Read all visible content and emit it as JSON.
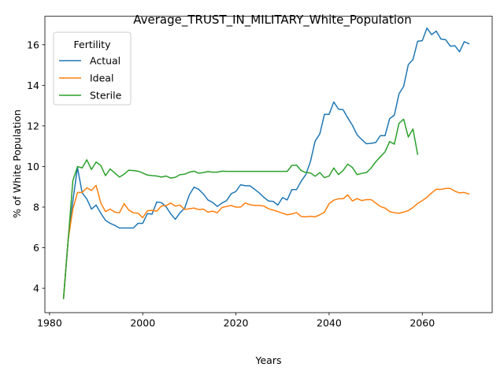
{
  "chart_data": {
    "type": "line",
    "title": "Average_TRUST_IN_MILITARY_White_Population",
    "xlabel": "Years",
    "ylabel": "% of White Population",
    "xlim": [
      1979,
      2075
    ],
    "ylim": [
      2.8,
      17.4
    ],
    "xticks": [
      1980,
      2000,
      2020,
      2040,
      2060
    ],
    "yticks": [
      4,
      6,
      8,
      10,
      12,
      14,
      16
    ],
    "grid": false,
    "legend": {
      "title": "Fertility",
      "placement": "top-left"
    },
    "series": [
      {
        "name": "Actual",
        "color": "#1f77b4",
        "points": [
          [
            1983,
            3.5
          ],
          [
            1984,
            6.4
          ],
          [
            1985,
            8.3
          ],
          [
            1986,
            9.95
          ],
          [
            1987,
            8.7
          ],
          [
            1988,
            8.4
          ],
          [
            1989,
            7.9
          ],
          [
            1990,
            8.1
          ],
          [
            1991,
            7.7
          ],
          [
            1992,
            7.35
          ],
          [
            1993,
            7.2
          ],
          [
            1994,
            7.1
          ],
          [
            1995,
            6.97
          ],
          [
            1996,
            6.97
          ],
          [
            1997,
            6.97
          ],
          [
            1998,
            6.97
          ],
          [
            1999,
            7.2
          ],
          [
            2000,
            7.2
          ],
          [
            2001,
            7.68
          ],
          [
            2002,
            7.65
          ],
          [
            2003,
            8.25
          ],
          [
            2004,
            8.22
          ],
          [
            2005,
            8.02
          ],
          [
            2006,
            7.67
          ],
          [
            2007,
            7.4
          ],
          [
            2008,
            7.72
          ],
          [
            2009,
            7.95
          ],
          [
            2010,
            8.6
          ],
          [
            2011,
            8.98
          ],
          [
            2012,
            8.88
          ],
          [
            2013,
            8.65
          ],
          [
            2014,
            8.35
          ],
          [
            2015,
            8.23
          ],
          [
            2016,
            8.03
          ],
          [
            2017,
            8.2
          ],
          [
            2018,
            8.32
          ],
          [
            2019,
            8.66
          ],
          [
            2020,
            8.77
          ],
          [
            2021,
            9.1
          ],
          [
            2022,
            9.05
          ],
          [
            2023,
            9.05
          ],
          [
            2024,
            8.88
          ],
          [
            2025,
            8.7
          ],
          [
            2026,
            8.48
          ],
          [
            2027,
            8.3
          ],
          [
            2028,
            8.28
          ],
          [
            2029,
            8.1
          ],
          [
            2030,
            8.47
          ],
          [
            2031,
            8.35
          ],
          [
            2032,
            8.86
          ],
          [
            2033,
            8.86
          ],
          [
            2034,
            9.27
          ],
          [
            2035,
            9.6
          ],
          [
            2036,
            10.25
          ],
          [
            2037,
            11.25
          ],
          [
            2038,
            11.6
          ],
          [
            2039,
            12.57
          ],
          [
            2040,
            12.57
          ],
          [
            2041,
            13.18
          ],
          [
            2042,
            12.83
          ],
          [
            2043,
            12.8
          ],
          [
            2044,
            12.4
          ],
          [
            2045,
            12.03
          ],
          [
            2046,
            11.56
          ],
          [
            2047,
            11.33
          ],
          [
            2048,
            11.12
          ],
          [
            2049,
            11.14
          ],
          [
            2050,
            11.18
          ],
          [
            2051,
            11.52
          ],
          [
            2052,
            11.52
          ],
          [
            2053,
            12.36
          ],
          [
            2054,
            12.53
          ],
          [
            2055,
            13.58
          ],
          [
            2056,
            13.95
          ],
          [
            2057,
            15.02
          ],
          [
            2058,
            15.27
          ],
          [
            2059,
            16.17
          ],
          [
            2060,
            16.2
          ],
          [
            2061,
            16.82
          ],
          [
            2062,
            16.5
          ],
          [
            2063,
            16.67
          ],
          [
            2064,
            16.28
          ],
          [
            2065,
            16.25
          ],
          [
            2066,
            15.93
          ],
          [
            2067,
            15.95
          ],
          [
            2068,
            15.65
          ],
          [
            2069,
            16.15
          ],
          [
            2070,
            16.05
          ]
        ]
      },
      {
        "name": "Ideal",
        "color": "#ff7f0e",
        "points": [
          [
            1983,
            3.5
          ],
          [
            1984,
            6.4
          ],
          [
            1985,
            7.9
          ],
          [
            1986,
            8.72
          ],
          [
            1987,
            8.72
          ],
          [
            1988,
            8.95
          ],
          [
            1989,
            8.82
          ],
          [
            1990,
            9.07
          ],
          [
            1991,
            8.2
          ],
          [
            1992,
            7.78
          ],
          [
            1993,
            7.9
          ],
          [
            1994,
            7.75
          ],
          [
            1995,
            7.72
          ],
          [
            1996,
            8.17
          ],
          [
            1997,
            7.85
          ],
          [
            1998,
            7.72
          ],
          [
            1999,
            7.7
          ],
          [
            2000,
            7.48
          ],
          [
            2001,
            7.82
          ],
          [
            2002,
            7.84
          ],
          [
            2003,
            7.8
          ],
          [
            2004,
            8.05
          ],
          [
            2005,
            8.07
          ],
          [
            2006,
            8.2
          ],
          [
            2007,
            8.05
          ],
          [
            2008,
            8.1
          ],
          [
            2009,
            7.88
          ],
          [
            2010,
            7.92
          ],
          [
            2011,
            7.95
          ],
          [
            2012,
            7.88
          ],
          [
            2013,
            7.9
          ],
          [
            2014,
            7.75
          ],
          [
            2015,
            7.8
          ],
          [
            2016,
            7.72
          ],
          [
            2017,
            7.98
          ],
          [
            2018,
            8.03
          ],
          [
            2019,
            8.08
          ],
          [
            2020,
            8.0
          ],
          [
            2021,
            8.0
          ],
          [
            2022,
            8.2
          ],
          [
            2023,
            8.12
          ],
          [
            2024,
            8.08
          ],
          [
            2025,
            8.08
          ],
          [
            2026,
            8.05
          ],
          [
            2027,
            7.92
          ],
          [
            2028,
            7.85
          ],
          [
            2029,
            7.78
          ],
          [
            2030,
            7.7
          ],
          [
            2031,
            7.62
          ],
          [
            2032,
            7.66
          ],
          [
            2033,
            7.73
          ],
          [
            2034,
            7.54
          ],
          [
            2035,
            7.52
          ],
          [
            2036,
            7.55
          ],
          [
            2037,
            7.52
          ],
          [
            2038,
            7.62
          ],
          [
            2039,
            7.75
          ],
          [
            2040,
            8.17
          ],
          [
            2041,
            8.34
          ],
          [
            2042,
            8.41
          ],
          [
            2043,
            8.41
          ],
          [
            2044,
            8.6
          ],
          [
            2045,
            8.3
          ],
          [
            2046,
            8.42
          ],
          [
            2047,
            8.32
          ],
          [
            2048,
            8.37
          ],
          [
            2049,
            8.37
          ],
          [
            2050,
            8.2
          ],
          [
            2051,
            8.03
          ],
          [
            2052,
            7.95
          ],
          [
            2053,
            7.78
          ],
          [
            2054,
            7.72
          ],
          [
            2055,
            7.7
          ],
          [
            2056,
            7.75
          ],
          [
            2057,
            7.83
          ],
          [
            2058,
            7.98
          ],
          [
            2059,
            8.18
          ],
          [
            2060,
            8.32
          ],
          [
            2061,
            8.48
          ],
          [
            2062,
            8.7
          ],
          [
            2063,
            8.88
          ],
          [
            2064,
            8.87
          ],
          [
            2065,
            8.92
          ],
          [
            2066,
            8.92
          ],
          [
            2067,
            8.78
          ],
          [
            2068,
            8.7
          ],
          [
            2069,
            8.72
          ],
          [
            2070,
            8.65
          ]
        ]
      },
      {
        "name": "Sterile",
        "color": "#2ca02c",
        "points": [
          [
            1983,
            3.5
          ],
          [
            1984,
            6.4
          ],
          [
            1985,
            9.3
          ],
          [
            1986,
            10.0
          ],
          [
            1987,
            9.93
          ],
          [
            1988,
            10.33
          ],
          [
            1989,
            9.85
          ],
          [
            1990,
            10.22
          ],
          [
            1991,
            10.05
          ],
          [
            1992,
            9.55
          ],
          [
            1993,
            9.88
          ],
          [
            1994,
            9.68
          ],
          [
            1995,
            9.48
          ],
          [
            1996,
            9.62
          ],
          [
            1997,
            9.82
          ],
          [
            1998,
            9.8
          ],
          [
            1999,
            9.77
          ],
          [
            2000,
            9.68
          ],
          [
            2001,
            9.58
          ],
          [
            2002,
            9.55
          ],
          [
            2003,
            9.53
          ],
          [
            2004,
            9.48
          ],
          [
            2005,
            9.53
          ],
          [
            2006,
            9.43
          ],
          [
            2007,
            9.47
          ],
          [
            2008,
            9.6
          ],
          [
            2009,
            9.62
          ],
          [
            2010,
            9.72
          ],
          [
            2011,
            9.77
          ],
          [
            2012,
            9.67
          ],
          [
            2013,
            9.7
          ],
          [
            2014,
            9.75
          ],
          [
            2015,
            9.72
          ],
          [
            2016,
            9.72
          ],
          [
            2017,
            9.77
          ],
          [
            2018,
            9.76
          ],
          [
            2019,
            9.76
          ],
          [
            2020,
            9.76
          ],
          [
            2021,
            9.76
          ],
          [
            2022,
            9.76
          ],
          [
            2023,
            9.76
          ],
          [
            2024,
            9.76
          ],
          [
            2025,
            9.76
          ],
          [
            2026,
            9.76
          ],
          [
            2027,
            9.76
          ],
          [
            2028,
            9.76
          ],
          [
            2029,
            9.76
          ],
          [
            2030,
            9.76
          ],
          [
            2031,
            9.76
          ],
          [
            2032,
            10.05
          ],
          [
            2033,
            10.07
          ],
          [
            2034,
            9.8
          ],
          [
            2035,
            9.7
          ],
          [
            2036,
            9.68
          ],
          [
            2037,
            9.52
          ],
          [
            2038,
            9.7
          ],
          [
            2039,
            9.45
          ],
          [
            2040,
            9.53
          ],
          [
            2041,
            9.93
          ],
          [
            2042,
            9.6
          ],
          [
            2043,
            9.8
          ],
          [
            2044,
            10.12
          ],
          [
            2045,
            9.95
          ],
          [
            2046,
            9.6
          ],
          [
            2047,
            9.66
          ],
          [
            2048,
            9.7
          ],
          [
            2049,
            9.92
          ],
          [
            2050,
            10.23
          ],
          [
            2051,
            10.48
          ],
          [
            2052,
            10.72
          ],
          [
            2053,
            11.23
          ],
          [
            2054,
            11.1
          ],
          [
            2055,
            12.13
          ],
          [
            2056,
            12.33
          ],
          [
            2057,
            11.45
          ],
          [
            2058,
            11.85
          ],
          [
            2059,
            10.6
          ]
        ]
      }
    ]
  }
}
